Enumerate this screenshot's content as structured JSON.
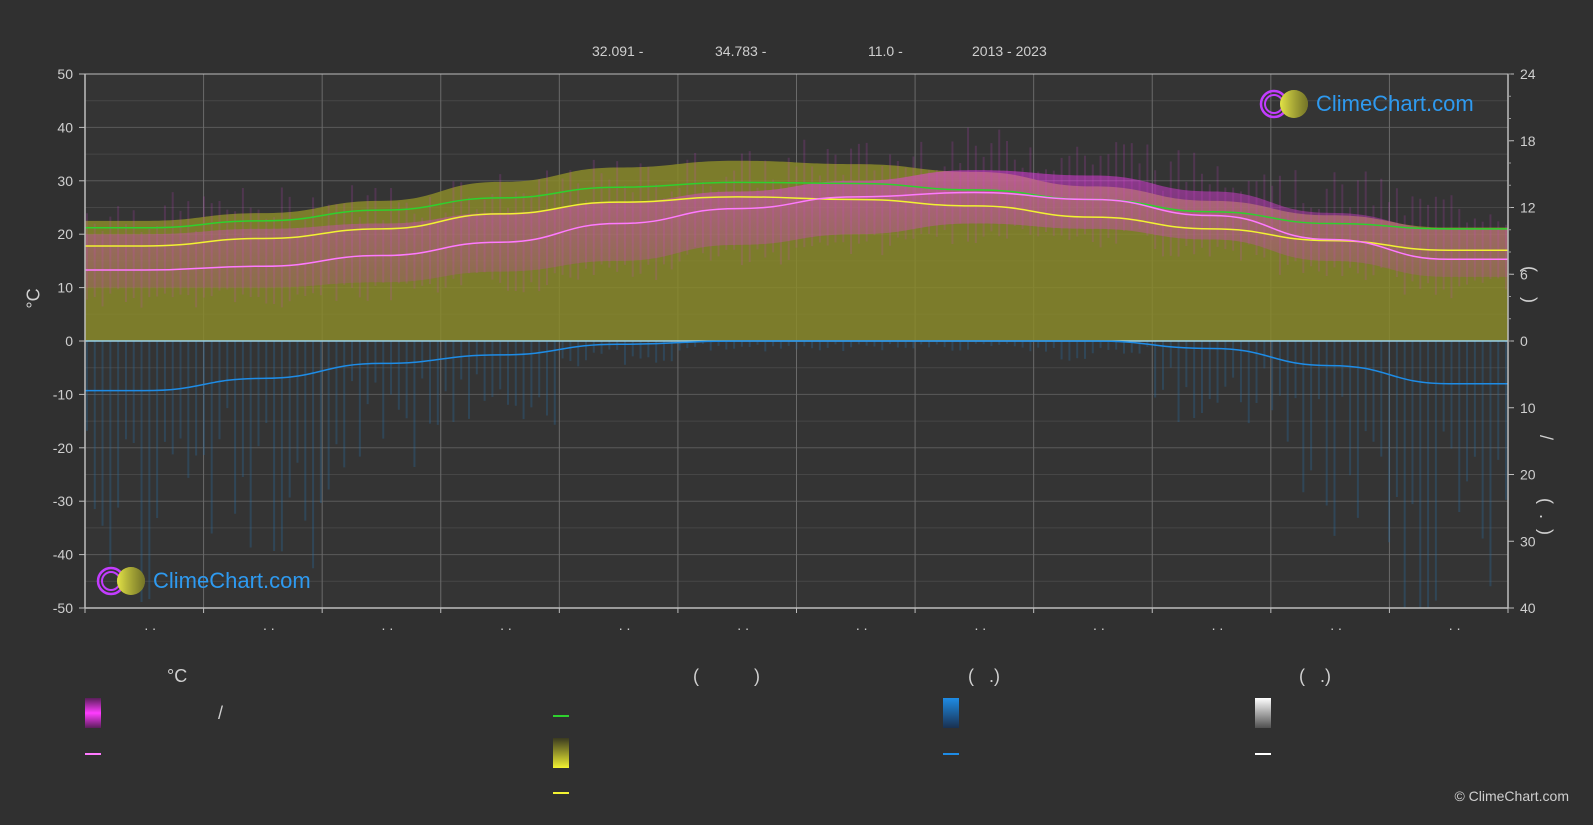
{
  "header": {
    "lat": "32.091 -",
    "lon": "34.783 -",
    "elev": "11.0 -",
    "years": "2013 - 2023"
  },
  "axes": {
    "left_unit": "°C",
    "left_ticks": [
      "50",
      "40",
      "30",
      "20",
      "10",
      "0",
      "-10",
      "-20",
      "-30",
      "-40",
      "-50"
    ],
    "right_top_ticks": [
      "24",
      "18",
      "12",
      "6",
      "0"
    ],
    "right_bottom_ticks": [
      "10",
      "20",
      "30",
      "40"
    ],
    "right_top_label": "(     )",
    "right_bottom_label": "/",
    "right_bottom_label2": "(  .  )",
    "month_labels": [
      ". .",
      ". .",
      ". .",
      ". .",
      ". .",
      ". .",
      ". .",
      ". .",
      ". .",
      ". .",
      ". .",
      ". ."
    ]
  },
  "legend": {
    "col1_head": "°C",
    "col2_head": "(           )",
    "col3_head": "(   .)",
    "col4_head": "(   .)",
    "col1_item1_text": "/",
    "colors": {
      "magenta": "#ff3cff",
      "pink_line": "#ff7aff",
      "green_line": "#2ed12e",
      "olive": "#a8a830",
      "yellow_line": "#f2f232",
      "blue": "#1e8ce6",
      "white": "#ffffff"
    }
  },
  "logo": {
    "text": "ClimeChart.com"
  },
  "copyright": "© ClimeChart.com",
  "chart_data": {
    "type": "area",
    "months": 12,
    "xlabel": "",
    "ylim_left": [
      -50,
      50
    ],
    "ylim_right_top": [
      0,
      24
    ],
    "ylim_right_bottom": [
      0,
      40
    ],
    "grid": true,
    "series": [
      {
        "name": "",
        "axis": "left",
        "color": "#2ed12e",
        "values": [
          21.2,
          22.5,
          24.5,
          26.8,
          28.8,
          29.7,
          29.5,
          28.3,
          26.5,
          24.2,
          22.0,
          21.0
        ]
      },
      {
        "name": "",
        "axis": "left",
        "color": "#f2f232",
        "values": [
          17.8,
          19.2,
          21.0,
          23.8,
          26.0,
          27.0,
          26.5,
          25.3,
          23.2,
          21.0,
          18.8,
          17.0
        ]
      },
      {
        "name": "",
        "axis": "left",
        "color": "#ff7aff",
        "values": [
          13.3,
          14.0,
          16.0,
          18.5,
          22.0,
          24.8,
          27.0,
          27.8,
          26.5,
          23.5,
          19.0,
          15.3
        ]
      },
      {
        "name": "",
        "axis": "left",
        "color": "#1e8ce6",
        "values": [
          -9.3,
          -7.0,
          -4.2,
          -2.6,
          -0.6,
          0.0,
          0.0,
          0.0,
          0.0,
          -1.4,
          -4.6,
          -8.0
        ]
      }
    ],
    "bands": {
      "max_temp_band": [
        20,
        21,
        22,
        24,
        26,
        28,
        30,
        32,
        31,
        28,
        24,
        21
      ],
      "min_temp_band": [
        10,
        10,
        11,
        13,
        15,
        18,
        20,
        22,
        21,
        19,
        15,
        12
      ],
      "sunshine_hours_fill": [
        10.8,
        11.5,
        12.6,
        14.3,
        15.6,
        16.2,
        15.9,
        15.2,
        13.9,
        12.6,
        11.3,
        10.2
      ],
      "precip_bars": [
        25,
        22,
        14,
        8,
        3,
        1,
        1,
        1,
        2,
        8,
        20,
        30
      ]
    }
  }
}
